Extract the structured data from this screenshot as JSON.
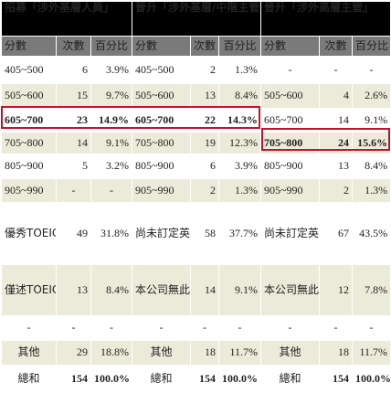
{
  "titles": [
    "招募「涉外基層人員」",
    "晉升「涉外基層/中階主管」",
    "晉升「涉外高層主管」"
  ],
  "headers": {
    "score": "分數",
    "count": "次數",
    "percent": "百分比"
  },
  "rows": [
    {
      "style": "light",
      "cells": [
        [
          "405~500",
          "6",
          "3.9%"
        ],
        [
          "405~500",
          "2",
          "1.3%"
        ],
        [
          "-",
          "-",
          "-"
        ]
      ]
    },
    {
      "style": "dark",
      "cells": [
        [
          "505~600",
          "15",
          "9.7%"
        ],
        [
          "505~600",
          "13",
          "8.4%"
        ],
        [
          "505~600",
          "4",
          "2.6%"
        ]
      ]
    },
    {
      "style": "light",
      "cells": [
        [
          "605~700",
          "23",
          "14.9%"
        ],
        [
          "605~700",
          "22",
          "14.3%"
        ],
        [
          "605~700",
          "14",
          "9.1%"
        ]
      ]
    },
    {
      "style": "dark",
      "cells": [
        [
          "705~800",
          "14",
          "9.1%"
        ],
        [
          "705~800",
          "19",
          "12.3%"
        ],
        [
          "705~800",
          "24",
          "15.6%"
        ]
      ]
    },
    {
      "style": "light",
      "cells": [
        [
          "805~900",
          "5",
          "3.2%"
        ],
        [
          "805~900",
          "6",
          "3.9%"
        ],
        [
          "805~900",
          "13",
          "8.4%"
        ]
      ]
    },
    {
      "style": "dark",
      "cells": [
        [
          "905~990",
          "-",
          "-"
        ],
        [
          "905~990",
          "2",
          "1.3%"
        ],
        [
          "905~990",
          "2",
          "1.3%"
        ]
      ]
    },
    {
      "style": "light",
      "cells": [
        [
          "優秀TOEIC優先，不訂門檻分數",
          "49",
          "31.8%"
        ],
        [
          "尚未訂定英語成績標準",
          "58",
          "37.7%"
        ],
        [
          "尚未訂定英語成績標準",
          "67",
          "43.5%"
        ]
      ]
    },
    {
      "style": "dark",
      "cells": [
        [
          "僅述TOEIC必備，不訂門檻分數",
          "13",
          "8.4%"
        ],
        [
          "本公司無此職位",
          "14",
          "9.1%"
        ],
        [
          "本公司無此職位",
          "12",
          "7.8%"
        ]
      ]
    },
    {
      "style": "light",
      "cells": [
        [
          "-",
          "-",
          "-"
        ],
        [
          "-",
          "-",
          "-"
        ],
        [
          "-",
          "-",
          "-"
        ]
      ]
    },
    {
      "style": "dark",
      "cells": [
        [
          "其他",
          "29",
          "18.8%"
        ],
        [
          "其他",
          "18",
          "11.7%"
        ],
        [
          "其他",
          "18",
          "11.7%"
        ]
      ]
    },
    {
      "style": "light",
      "cells": [
        [
          "總和",
          "154",
          "100.0%"
        ],
        [
          "總和",
          "154",
          "100.0%"
        ],
        [
          "總和",
          "154",
          "100.0%"
        ]
      ]
    }
  ],
  "highlights": [
    {
      "section": "招募「涉外基層人員」 / 晉升「涉外基層/中階主管」",
      "score": "605~700"
    },
    {
      "section": "晉升「涉外高層主管」",
      "score": "705~800"
    }
  ],
  "colors": {
    "title_bg": "#000000",
    "header_bg": "#7a7a7a",
    "row_light": "#ffffff",
    "row_dark": "#ecebd9",
    "highlight_border": "#c8102e"
  }
}
